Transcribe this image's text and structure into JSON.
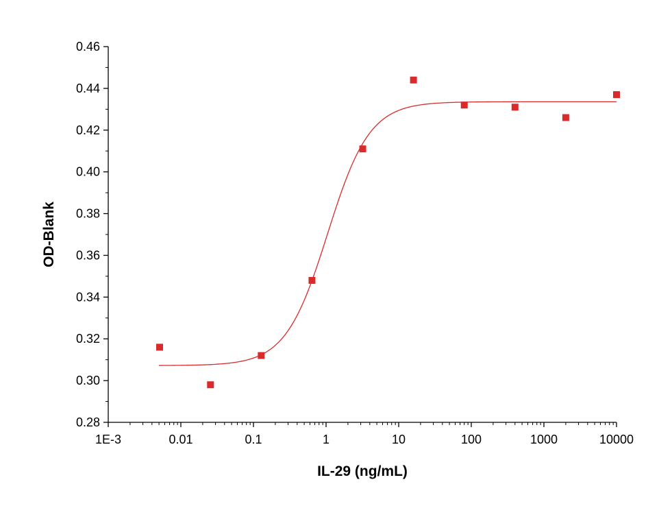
{
  "chart_data": {
    "type": "scatter",
    "xlabel": "IL-29 (ng/mL)",
    "ylabel": "OD-Blank",
    "x_scale": "log10",
    "xlim": [
      0.001,
      10000
    ],
    "ylim": [
      0.28,
      0.46
    ],
    "x_ticks": [
      {
        "value": 0.001,
        "label": "1E-3"
      },
      {
        "value": 0.01,
        "label": "0.01"
      },
      {
        "value": 0.1,
        "label": "0.1"
      },
      {
        "value": 1,
        "label": "1"
      },
      {
        "value": 10,
        "label": "10"
      },
      {
        "value": 100,
        "label": "100"
      },
      {
        "value": 1000,
        "label": "1000"
      },
      {
        "value": 10000,
        "label": "10000"
      }
    ],
    "y_ticks": [
      {
        "value": 0.28,
        "label": "0.28"
      },
      {
        "value": 0.3,
        "label": "0.30"
      },
      {
        "value": 0.32,
        "label": "0.32"
      },
      {
        "value": 0.34,
        "label": "0.34"
      },
      {
        "value": 0.36,
        "label": "0.36"
      },
      {
        "value": 0.38,
        "label": "0.38"
      },
      {
        "value": 0.4,
        "label": "0.40"
      },
      {
        "value": 0.42,
        "label": "0.42"
      },
      {
        "value": 0.44,
        "label": "0.44"
      },
      {
        "value": 0.46,
        "label": "0.46"
      }
    ],
    "grid": false,
    "marker": "square",
    "color": "#d92b2b",
    "points": [
      {
        "x": 0.0051,
        "y": 0.316
      },
      {
        "x": 0.0256,
        "y": 0.298
      },
      {
        "x": 0.128,
        "y": 0.312
      },
      {
        "x": 0.64,
        "y": 0.348
      },
      {
        "x": 3.2,
        "y": 0.411
      },
      {
        "x": 16,
        "y": 0.444
      },
      {
        "x": 80,
        "y": 0.432
      },
      {
        "x": 400,
        "y": 0.431
      },
      {
        "x": 2000,
        "y": 0.426
      },
      {
        "x": 10000,
        "y": 0.437
      }
    ],
    "fit_curve": {
      "model": "4PL",
      "bottom": 0.3072,
      "top": 0.4336,
      "ec50": 1.05,
      "hill": 1.5,
      "x_range": [
        0.005,
        10000
      ]
    }
  }
}
